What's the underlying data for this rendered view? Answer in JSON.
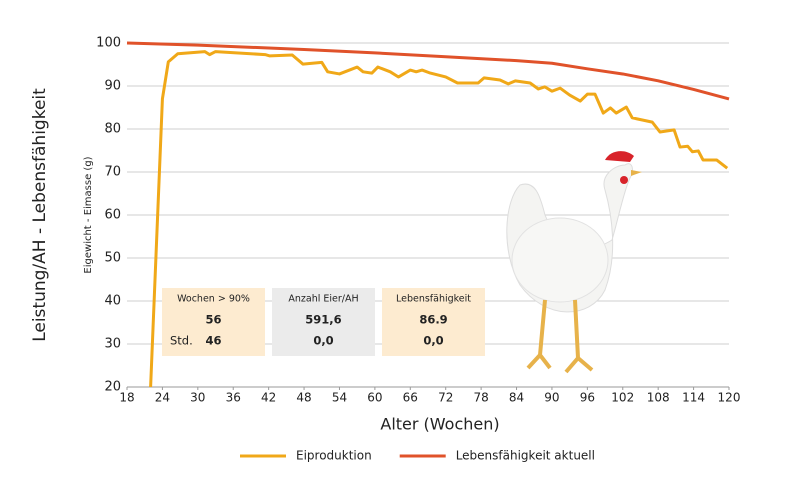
{
  "chart_data": {
    "type": "line",
    "y_label": "Leistung/AH - Lebensfähigkeit",
    "y_sublabel": "Eigewicht - Eimasse (g)",
    "x_label": "Alter (Wochen)",
    "xlim": [
      18,
      120
    ],
    "xticks": [
      18,
      24,
      30,
      36,
      42,
      48,
      54,
      60,
      66,
      72,
      78,
      84,
      90,
      96,
      102,
      108,
      114,
      120
    ],
    "ylim": [
      20,
      100
    ],
    "yticks": [
      20,
      30,
      40,
      50,
      60,
      70,
      80,
      90,
      100
    ],
    "grid": true,
    "legend": "bottom",
    "series": [
      {
        "name": "Eiproduktion",
        "color": "#f0a818",
        "x": [
          22,
          24,
          25,
          26.6,
          31.2,
          32,
          33,
          41.4,
          42.2,
          46,
          47.8,
          51,
          52,
          54,
          57,
          58,
          59.5,
          60.5,
          62.6,
          64,
          66,
          67,
          68,
          69.4,
          72,
          74,
          77.5,
          78.5,
          81.2,
          82.6,
          83.8,
          86.3,
          87.7,
          88.8,
          90,
          91.4,
          93,
          94.8,
          96,
          97.3,
          98.7,
          99.9,
          100.9,
          102.6,
          103.6,
          107,
          108.3,
          110.7,
          111.7,
          113,
          113.8,
          114.8,
          115.6,
          117.9,
          119.7
        ],
        "values": [
          20,
          87,
          95.6,
          97.5,
          98,
          97.3,
          98,
          97.3,
          97,
          97.2,
          95.1,
          95.5,
          93.3,
          92.8,
          94.4,
          93.3,
          93,
          94.4,
          93.3,
          92.1,
          93.7,
          93.3,
          93.7,
          93,
          92.1,
          90.7,
          90.7,
          91.9,
          91.4,
          90.5,
          91.2,
          90.7,
          89.3,
          89.8,
          88.8,
          89.5,
          87.9,
          86.5,
          88.1,
          88.1,
          83.7,
          84.9,
          83.7,
          85.1,
          82.6,
          81.6,
          79.3,
          79.8,
          75.8,
          76,
          74.7,
          74.9,
          72.8,
          72.8,
          70.9
        ]
      },
      {
        "name": "Lebensfähigkeit aktuell",
        "color": "#e0522a",
        "x": [
          18,
          30,
          48,
          60,
          72,
          84,
          90,
          96,
          102,
          108,
          114,
          120
        ],
        "values": [
          100,
          99.5,
          98.5,
          97.7,
          96.8,
          95.9,
          95.3,
          94,
          92.8,
          91.2,
          89.2,
          87
        ]
      }
    ],
    "stat_boxes": [
      {
        "header": "Wochen > 90%",
        "value": "56",
        "row_label": "Std.",
        "std": "46",
        "color": "#fdebd0"
      },
      {
        "header": "Anzahl Eier/AH",
        "value": "591,6",
        "std": "0,0",
        "color": "#ebebeb"
      },
      {
        "header": "Lebensfähigkeit",
        "value": "86.9",
        "std": "0,0",
        "color": "#fdebd0"
      }
    ]
  }
}
